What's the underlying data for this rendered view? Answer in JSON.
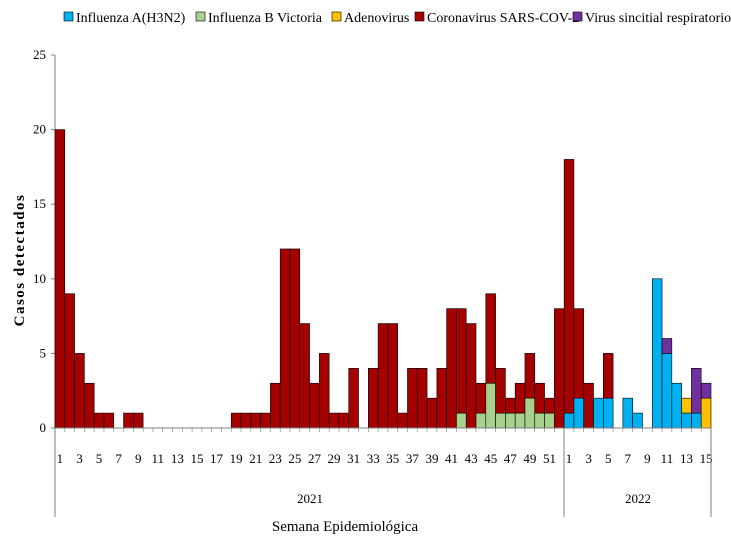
{
  "chart_data": {
    "type": "bar",
    "stacked": true,
    "ylabel": "Casos detectados",
    "xlabel": "Semana Epidemiológica",
    "ylim": [
      0,
      25
    ],
    "yticks": [
      "0",
      "5",
      "10",
      "15",
      "20",
      "25"
    ],
    "years": [
      {
        "label": "2021",
        "weeks": 52
      },
      {
        "label": "2022",
        "weeks": 15
      }
    ],
    "week_tick_labels_2021": [
      "1",
      "3",
      "5",
      "7",
      "9",
      "11",
      "13",
      "15",
      "17",
      "19",
      "21",
      "23",
      "25",
      "27",
      "29",
      "31",
      "33",
      "35",
      "37",
      "39",
      "41",
      "43",
      "45",
      "47",
      "49",
      "51"
    ],
    "week_tick_labels_2022": [
      "1",
      "3",
      "5",
      "7",
      "9",
      "11",
      "13",
      "15"
    ],
    "legend": {
      "placement": "top"
    },
    "series": [
      {
        "name": "Influenza  A(H3N2)",
        "color": "#00b0f0",
        "values": [
          0,
          0,
          0,
          0,
          0,
          0,
          0,
          0,
          0,
          0,
          0,
          0,
          0,
          0,
          0,
          0,
          0,
          0,
          0,
          0,
          0,
          0,
          0,
          0,
          0,
          0,
          0,
          0,
          0,
          0,
          0,
          0,
          0,
          0,
          0,
          0,
          0,
          0,
          0,
          0,
          0,
          0,
          0,
          0,
          0,
          0,
          0,
          0,
          0,
          0,
          0,
          0,
          1,
          2,
          0,
          2,
          2,
          0,
          2,
          1,
          0,
          10,
          5,
          3,
          1,
          1,
          0
        ]
      },
      {
        "name": "Influenza  B Victoria",
        "color": "#a9d18e",
        "values": [
          0,
          0,
          0,
          0,
          0,
          0,
          0,
          0,
          0,
          0,
          0,
          0,
          0,
          0,
          0,
          0,
          0,
          0,
          0,
          0,
          0,
          0,
          0,
          0,
          0,
          0,
          0,
          0,
          0,
          0,
          0,
          0,
          0,
          0,
          0,
          0,
          0,
          0,
          0,
          0,
          0,
          1,
          0,
          1,
          3,
          1,
          1,
          1,
          2,
          1,
          1,
          0,
          0,
          0,
          0,
          0,
          0,
          0,
          0,
          0,
          0,
          0,
          0,
          0,
          0,
          0,
          0
        ]
      },
      {
        "name": "Adenovirus",
        "color": "#ffc000",
        "values": [
          0,
          0,
          0,
          0,
          0,
          0,
          0,
          0,
          0,
          0,
          0,
          0,
          0,
          0,
          0,
          0,
          0,
          0,
          0,
          0,
          0,
          0,
          0,
          0,
          0,
          0,
          0,
          0,
          0,
          0,
          0,
          0,
          0,
          0,
          0,
          0,
          0,
          0,
          0,
          0,
          0,
          0,
          0,
          0,
          0,
          0,
          0,
          0,
          0,
          0,
          0,
          0,
          0,
          0,
          0,
          0,
          0,
          0,
          0,
          0,
          0,
          0,
          0,
          0,
          1,
          0,
          2
        ]
      },
      {
        "name": "Coronavirus SARS-COV-2",
        "color": "#a50000",
        "values": [
          20,
          9,
          5,
          3,
          1,
          1,
          0,
          1,
          1,
          0,
          0,
          0,
          0,
          0,
          0,
          0,
          0,
          0,
          1,
          1,
          1,
          1,
          3,
          12,
          12,
          7,
          3,
          5,
          1,
          1,
          4,
          0,
          4,
          7,
          7,
          1,
          4,
          4,
          2,
          4,
          8,
          7,
          7,
          2,
          6,
          3,
          1,
          2,
          3,
          2,
          1,
          8,
          17,
          6,
          3,
          0,
          3,
          0,
          0,
          0,
          0,
          0,
          0,
          0,
          0,
          0,
          0
        ]
      },
      {
        "name": "Virus sincitial respiratorio",
        "color": "#7030a0",
        "values": [
          0,
          0,
          0,
          0,
          0,
          0,
          0,
          0,
          0,
          0,
          0,
          0,
          0,
          0,
          0,
          0,
          0,
          0,
          0,
          0,
          0,
          0,
          0,
          0,
          0,
          0,
          0,
          0,
          0,
          0,
          0,
          0,
          0,
          0,
          0,
          0,
          0,
          0,
          0,
          0,
          0,
          0,
          0,
          0,
          0,
          0,
          0,
          0,
          0,
          0,
          0,
          0,
          0,
          0,
          0,
          0,
          0,
          0,
          0,
          0,
          0,
          0,
          1,
          0,
          0,
          3,
          1
        ]
      }
    ]
  }
}
